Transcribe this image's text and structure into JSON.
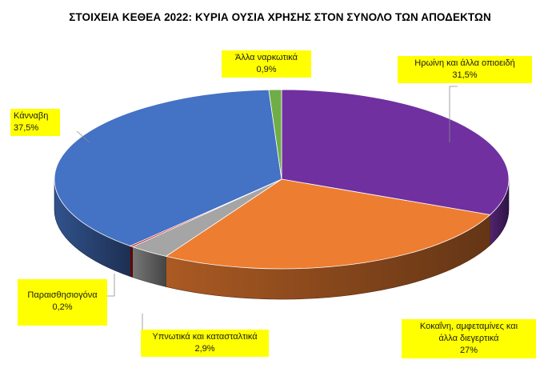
{
  "chart_data": {
    "type": "pie",
    "title": "ΣΤΟΙΧΕΙΑ ΚΕΘΕΑ 2022: ΚΥΡΙΑ ΟΥΣΙΑ ΧΡΗΣΗΣ ΣΤΟΝ ΣΥΝΟΛΟ ΤΩΝ ΑΠΟΔΕΚΤΩΝ",
    "slices": [
      {
        "name": "Ηρωίνη και άλλα οπιοειδή",
        "label": "31,5%",
        "value": 31.5,
        "color": "#7030a0"
      },
      {
        "name": "Κοκαΐνη, αμφεταμίνες και άλλα διεγερτικά",
        "label": "27%",
        "value": 27.0,
        "color": "#ed7d31"
      },
      {
        "name": "Υπνωτικά και κατασταλτικά",
        "label": "2,9%",
        "value": 2.9,
        "color": "#a5a5a5"
      },
      {
        "name": "Παραισθησιογόνα",
        "label": "0,2%",
        "value": 0.2,
        "color": "#c00000"
      },
      {
        "name": "Κάνναβη",
        "label": "37,5%",
        "value": 37.5,
        "color": "#4472c4"
      },
      {
        "name": "Άλλα ναρκωτικά",
        "label": "0,9%",
        "value": 0.9,
        "color": "#70ad47"
      }
    ],
    "style": "3d-pie",
    "label_background": "#ffff00"
  },
  "callouts": {
    "heroin": {
      "name_line1": "Ηρωίνη και άλλα οπιοειδή",
      "value": "31,5%"
    },
    "cocaine": {
      "name_line1": "Κοκαΐνη, αμφεταμίνες και",
      "name_line2": "άλλα διεγερτικά",
      "value": "27%"
    },
    "sedatives": {
      "name_line1": "Υπνωτικά και κατασταλτικά",
      "value": "2,9%"
    },
    "hallucinogens": {
      "name_line1": "Παραισθησιογόνα",
      "value": "0,2%"
    },
    "cannabis": {
      "name_line1": "Κάνναβη",
      "value": "37,5%"
    },
    "other": {
      "name_line1": "Άλλα ναρκωτικά",
      "value": "0,9%"
    }
  }
}
